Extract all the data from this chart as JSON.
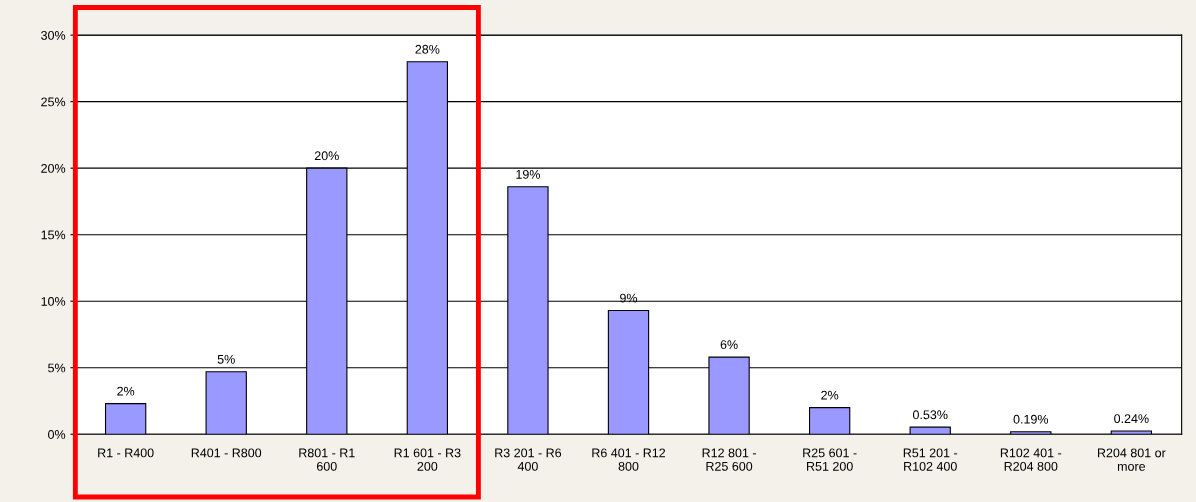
{
  "chart_data": {
    "type": "bar",
    "categories": [
      "R1 - R400",
      "R401 - R800",
      "R801 - R1\n600",
      "R1 601 - R3\n200",
      "R3 201 - R6\n400",
      "R6 401 - R12\n800",
      "R12 801 -\nR25 600",
      "R25 601 -\nR51 200",
      "R51 201 -\nR102 400",
      "R102 401 -\nR204 800",
      "R204 801 or\nmore"
    ],
    "values": [
      2.3,
      4.7,
      20,
      28,
      18.6,
      9.3,
      5.8,
      2.0,
      0.53,
      0.19,
      0.24
    ],
    "value_labels": [
      "2%",
      "5%",
      "20%",
      "28%",
      "19%",
      "9%",
      "6%",
      "2%",
      "0.53%",
      "0.19%",
      "0.24%"
    ],
    "color": "#9999ff",
    "ylim": [
      0,
      30
    ],
    "yticks": [
      {
        "value": 0,
        "label": "0%"
      },
      {
        "value": 5,
        "label": "5%"
      },
      {
        "value": 10,
        "label": "10%"
      },
      {
        "value": 15,
        "label": "15%"
      },
      {
        "value": 20,
        "label": "20%"
      },
      {
        "value": 25,
        "label": "25%"
      },
      {
        "value": 30,
        "label": "30%"
      }
    ],
    "grid": "y"
  }
}
